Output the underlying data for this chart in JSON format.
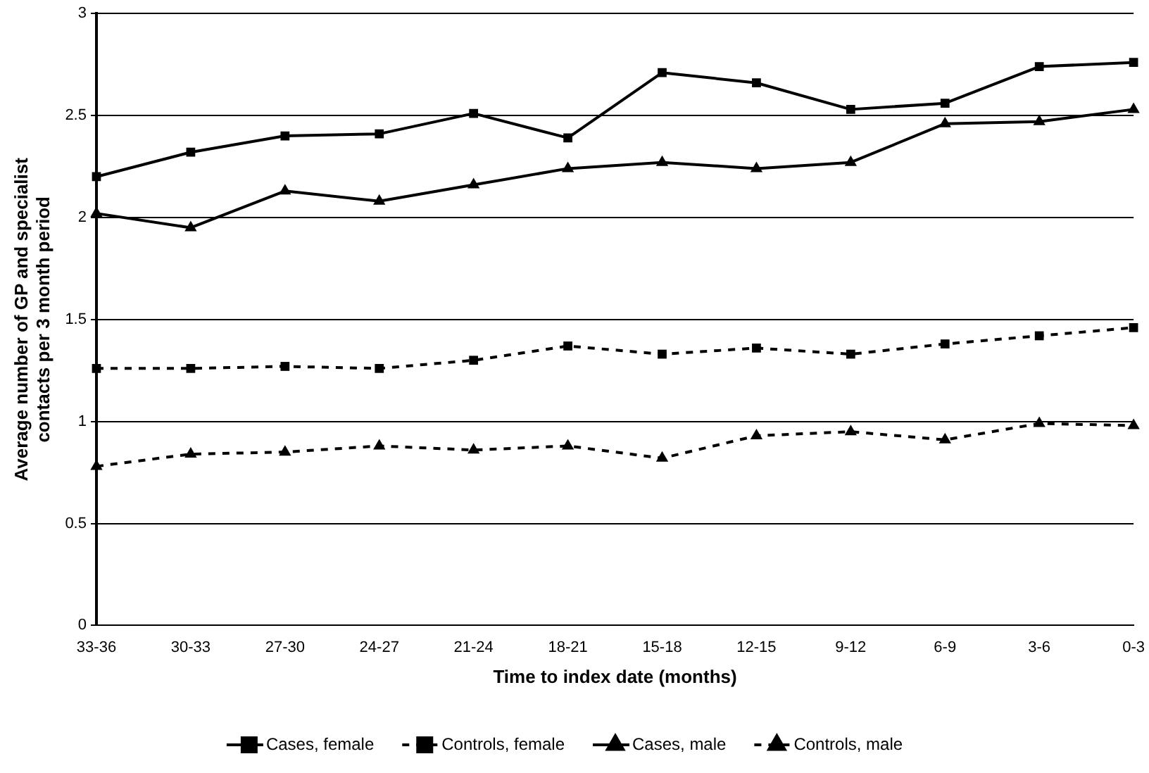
{
  "chart_data": {
    "type": "line",
    "xlabel": "Time to index date (months)",
    "ylabel": "Average number of GP and specialist contacts per 3 month period",
    "categories": [
      "33-36",
      "30-33",
      "27-30",
      "24-27",
      "21-24",
      "18-21",
      "15-18",
      "12-15",
      "9-12",
      "6-9",
      "3-6",
      "0-3"
    ],
    "series": [
      {
        "name": "Cases, female",
        "color": "#000000",
        "marker": "square",
        "line_style": "solid",
        "values": [
          2.2,
          2.32,
          2.4,
          2.41,
          2.51,
          2.39,
          2.71,
          2.66,
          2.53,
          2.56,
          2.74,
          2.76
        ]
      },
      {
        "name": "Controls, female",
        "color": "#000000",
        "marker": "square",
        "line_style": "dashed",
        "values": [
          1.26,
          1.26,
          1.27,
          1.26,
          1.3,
          1.37,
          1.33,
          1.36,
          1.33,
          1.38,
          1.42,
          1.46
        ]
      },
      {
        "name": "Cases, male",
        "color": "#000000",
        "marker": "triangle",
        "line_style": "solid",
        "values": [
          2.02,
          1.95,
          2.13,
          2.08,
          2.16,
          2.24,
          2.27,
          2.24,
          2.27,
          2.46,
          2.47,
          2.53
        ]
      },
      {
        "name": "Controls, male",
        "color": "#000000",
        "marker": "triangle",
        "line_style": "dashed",
        "values": [
          0.78,
          0.84,
          0.85,
          0.88,
          0.86,
          0.88,
          0.82,
          0.93,
          0.95,
          0.91,
          0.99,
          0.98
        ]
      }
    ],
    "ylim": [
      0,
      3
    ],
    "yticks": [
      0,
      0.5,
      1,
      1.5,
      2,
      2.5,
      3
    ],
    "grid": "y",
    "legend": "bottom"
  }
}
